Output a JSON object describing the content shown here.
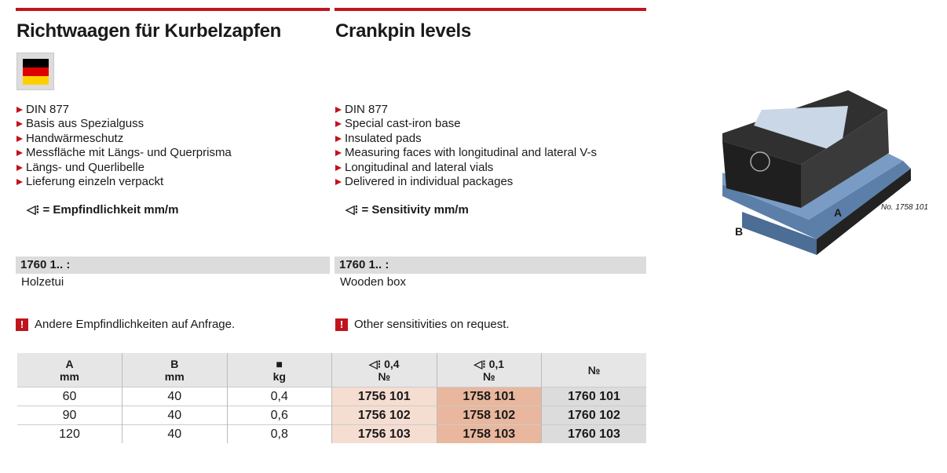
{
  "de": {
    "title": "Richtwaagen für Kurbelzapfen",
    "bullets": [
      "DIN 877",
      "Basis aus Spezialguss",
      "Handwärmeschutz",
      "Messfläche mit Längs- und Querprisma",
      "Längs- und Querlibelle",
      "Lieferung einzeln verpackt"
    ],
    "sensitivity": "= Empfindlichkeit mm/m",
    "code": "1760 1.. :",
    "accessory": "Holzetui",
    "note": "Andere Empfindlichkeiten auf Anfrage."
  },
  "en": {
    "title": "Crankpin levels",
    "bullets": [
      "DIN 877",
      "Special cast-iron base",
      "Insulated pads",
      "Measuring faces with longitudinal and lateral V-s",
      "Longitudinal and lateral vials",
      "Delivered in individual packages"
    ],
    "sensitivity": "= Sensitivity mm/m",
    "code": "1760 1.. :",
    "accessory": "Wooden box",
    "note": "Other sensitivities on request."
  },
  "icons": {
    "sensitivity": "level-sensitivity-icon",
    "weight": "weight-icon",
    "warning": "exclamation-icon",
    "flag": "german-flag-icon"
  },
  "colors": {
    "accent": "#c0141d",
    "col_04": "#f5ddd1",
    "col_01": "#e8b79d",
    "col_box": "#dcdcdc"
  },
  "table": {
    "headers": [
      [
        "A",
        "mm"
      ],
      [
        "B",
        "mm"
      ],
      [
        "",
        "kg"
      ],
      [
        "0,4",
        "№"
      ],
      [
        "0,1",
        "№"
      ],
      [
        "№",
        ""
      ]
    ],
    "rows": [
      [
        "60",
        "40",
        "0,4",
        "1756 101",
        "1758 101",
        "1760 101"
      ],
      [
        "90",
        "40",
        "0,6",
        "1756 102",
        "1758 102",
        "1760 102"
      ],
      [
        "120",
        "40",
        "0,8",
        "1756 103",
        "1758 103",
        "1760 103"
      ]
    ]
  },
  "image": {
    "label_a": "A",
    "label_b": "B",
    "caption": "No. 1758 101"
  }
}
